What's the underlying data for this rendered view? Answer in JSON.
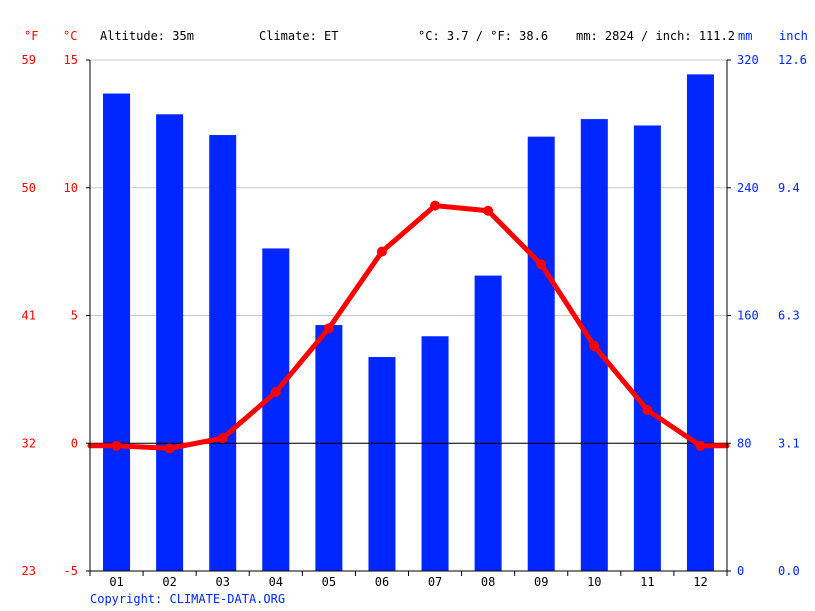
{
  "header": {
    "unit_f": "°F",
    "unit_c": "°C",
    "altitude": "Altitude: 35m",
    "climate": "Climate: ET",
    "temp_avg": "°C: 3.7 / °F: 38.6",
    "precip_total": "mm: 2824 / inch: 111.2",
    "unit_mm": "mm",
    "unit_inch": "inch"
  },
  "footer": {
    "copyright": "Copyright: CLIMATE-DATA.ORG"
  },
  "colors": {
    "temperature": "#ff0000",
    "precipitation": "#0026ff",
    "grid": "#c8c8c8"
  },
  "chart_data": {
    "type": "bar",
    "categories": [
      "01",
      "02",
      "03",
      "04",
      "05",
      "06",
      "07",
      "08",
      "09",
      "10",
      "11",
      "12"
    ],
    "series": [
      {
        "type": "bar",
        "axis": "precipitation_mm",
        "values": [
          299,
          286,
          273,
          202,
          154,
          134,
          147,
          185,
          272,
          283,
          279,
          311
        ]
      },
      {
        "type": "line",
        "axis": "temperature_c",
        "values": [
          -0.1,
          -0.2,
          0.2,
          2.0,
          4.5,
          7.5,
          9.3,
          9.1,
          7.0,
          3.8,
          1.3,
          -0.1
        ]
      }
    ],
    "temp_axis": {
      "ylim": [
        -5,
        15
      ],
      "ticks_c": [
        "-5",
        "0",
        "5",
        "10",
        "15"
      ],
      "ticks_f": [
        "23",
        "32",
        "41",
        "50",
        "59"
      ]
    },
    "precip_axis": {
      "ylim": [
        0,
        320
      ],
      "ticks_mm": [
        "0",
        "80",
        "160",
        "240",
        "320"
      ],
      "ticks_inch": [
        "0.0",
        "3.1",
        "6.3",
        "9.4",
        "12.6"
      ]
    },
    "grid": true
  }
}
